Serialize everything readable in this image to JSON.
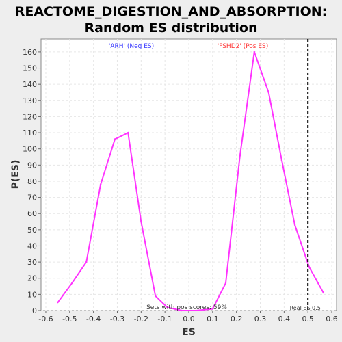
{
  "chart_data": {
    "type": "line",
    "title": "REACTOME_DIGESTION_AND_ABSORPTION:",
    "subtitle": "Random ES distribution",
    "xlabel": "ES",
    "ylabel": "P(ES)",
    "xlim": [
      -0.62,
      0.62
    ],
    "ylim": [
      0,
      168
    ],
    "xticks": [
      -0.6,
      -0.5,
      -0.4,
      -0.3,
      -0.2,
      -0.1,
      0.0,
      0.1,
      0.2,
      0.3,
      0.4,
      0.5,
      0.6
    ],
    "xtick_labels": [
      "-0.6",
      "-0.5",
      "-0.4",
      "-0.3",
      "-0.2",
      "-0.1",
      "0.0",
      "0.1",
      "0.2",
      "0.3",
      "0.4",
      "0.5",
      "0.6"
    ],
    "yticks": [
      0,
      10,
      20,
      30,
      40,
      50,
      60,
      70,
      80,
      90,
      100,
      110,
      120,
      130,
      140,
      150,
      160
    ],
    "ytick_labels": [
      "0",
      "10",
      "20",
      "30",
      "40",
      "50",
      "60",
      "70",
      "80",
      "90",
      "100",
      "110",
      "120",
      "130",
      "140",
      "150",
      "160"
    ],
    "grid": true,
    "series_color": "#ff33ff",
    "series": [
      {
        "x": [
          -0.55,
          -0.49,
          -0.43,
          -0.37,
          -0.31,
          -0.255,
          -0.2,
          -0.14,
          -0.09,
          -0.03,
          0.03,
          0.1,
          0.155,
          0.215,
          0.275,
          0.335,
          0.39,
          0.445,
          0.505,
          0.565
        ],
        "y": [
          5,
          17,
          30,
          78,
          106,
          110,
          55,
          9,
          2,
          0,
          0,
          1,
          17,
          96,
          160,
          135,
          93,
          53,
          27,
          11
        ]
      }
    ],
    "annotations": {
      "neg_label": "'ARH' (Neg ES)",
      "neg_color": "#3333ff",
      "pos_label": "'FSHD2' (Pos ES)",
      "pos_color": "#ff3333",
      "pos_scores_label": "Sets with pos scores: 59%",
      "real_es_label": "Real ES 0.5",
      "real_es_value": 0.5
    }
  }
}
